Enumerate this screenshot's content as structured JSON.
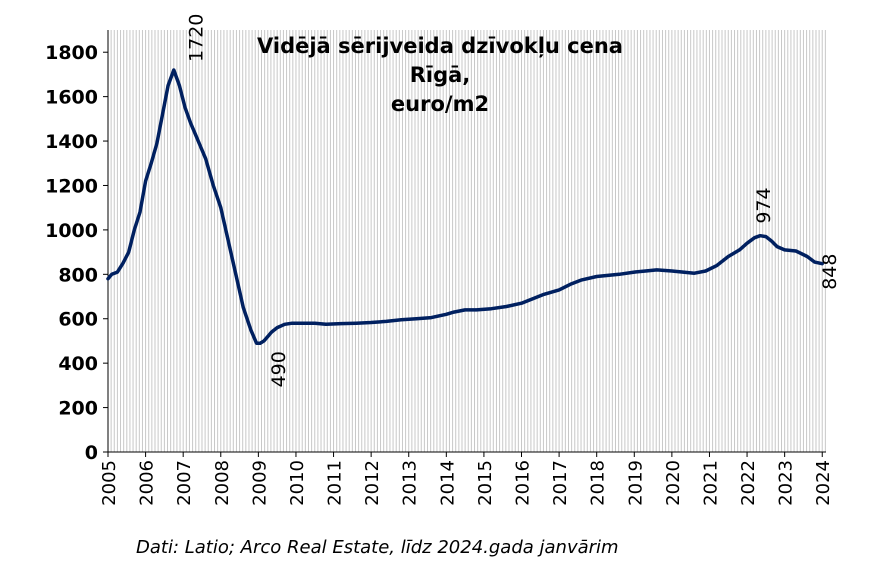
{
  "chart_data": {
    "type": "line",
    "title": "Vidējā sērijveida dzīvokļu cena Rīgā,",
    "subtitle": "euro/m2",
    "source_note": "Dati: Latio; Arco Real Estate, līdz 2024.gada janvārim",
    "y_ticks": [
      "0",
      "200",
      "400",
      "600",
      "800",
      "1000",
      "1200",
      "1400",
      "1600",
      "1800"
    ],
    "ylim": [
      0,
      1900
    ],
    "x_ticks": [
      "2005",
      "2006",
      "2007",
      "2008",
      "2009",
      "2010",
      "2011",
      "2012",
      "2013",
      "2014",
      "2015",
      "2016",
      "2017",
      "2018",
      "2019",
      "2020",
      "2021",
      "2022",
      "2023",
      "2024"
    ],
    "xlim": [
      2005.0,
      2024.1
    ],
    "grid": "vertical monthly lines",
    "line_color": "#002060",
    "series": [
      {
        "x": [
          2005.0,
          2005.1,
          2005.25,
          2005.4,
          2005.55,
          2005.7,
          2005.85,
          2006.0,
          2006.15,
          2006.3,
          2006.45,
          2006.6,
          2006.75,
          2006.9,
          2007.05,
          2007.2,
          2007.3,
          2007.45,
          2007.6,
          2007.8,
          2008.0,
          2008.2,
          2008.4,
          2008.6,
          2008.8,
          2008.95,
          2009.05,
          2009.15,
          2009.25,
          2009.35,
          2009.5,
          2009.7,
          2009.9,
          2010.1,
          2010.3,
          2010.5,
          2010.8,
          2011.2,
          2011.6,
          2012.0,
          2012.4,
          2012.8,
          2013.2,
          2013.6,
          2014.0,
          2014.2,
          2014.5,
          2014.8,
          2015.2,
          2015.6,
          2016.0,
          2016.3,
          2016.6,
          2017.0,
          2017.3,
          2017.6,
          2018.0,
          2018.3,
          2018.6,
          2019.0,
          2019.3,
          2019.6,
          2020.0,
          2020.3,
          2020.6,
          2020.9,
          2021.2,
          2021.5,
          2021.8,
          2022.0,
          2022.2,
          2022.35,
          2022.5,
          2022.65,
          2022.8,
          2023.0,
          2023.3,
          2023.6,
          2023.8,
          2024.0
        ],
        "values": [
          780,
          800,
          810,
          850,
          900,
          1000,
          1080,
          1220,
          1300,
          1390,
          1520,
          1650,
          1720,
          1650,
          1550,
          1480,
          1440,
          1380,
          1320,
          1200,
          1100,
          950,
          800,
          650,
          550,
          490,
          490,
          500,
          520,
          540,
          560,
          575,
          580,
          580,
          580,
          580,
          575,
          578,
          580,
          583,
          588,
          595,
          600,
          605,
          620,
          630,
          640,
          640,
          645,
          655,
          670,
          690,
          710,
          730,
          755,
          775,
          790,
          795,
          800,
          810,
          815,
          820,
          815,
          810,
          805,
          815,
          840,
          880,
          910,
          940,
          965,
          974,
          970,
          950,
          925,
          910,
          905,
          880,
          855,
          848
        ]
      }
    ],
    "annotations": [
      {
        "x": 2007.3,
        "y": 1720,
        "text": "1720"
      },
      {
        "x": 2009.5,
        "y": 490,
        "text": "490"
      },
      {
        "x": 2022.4,
        "y": 974,
        "text": "974"
      },
      {
        "x": 2024.15,
        "y": 848,
        "text": "848"
      }
    ]
  }
}
